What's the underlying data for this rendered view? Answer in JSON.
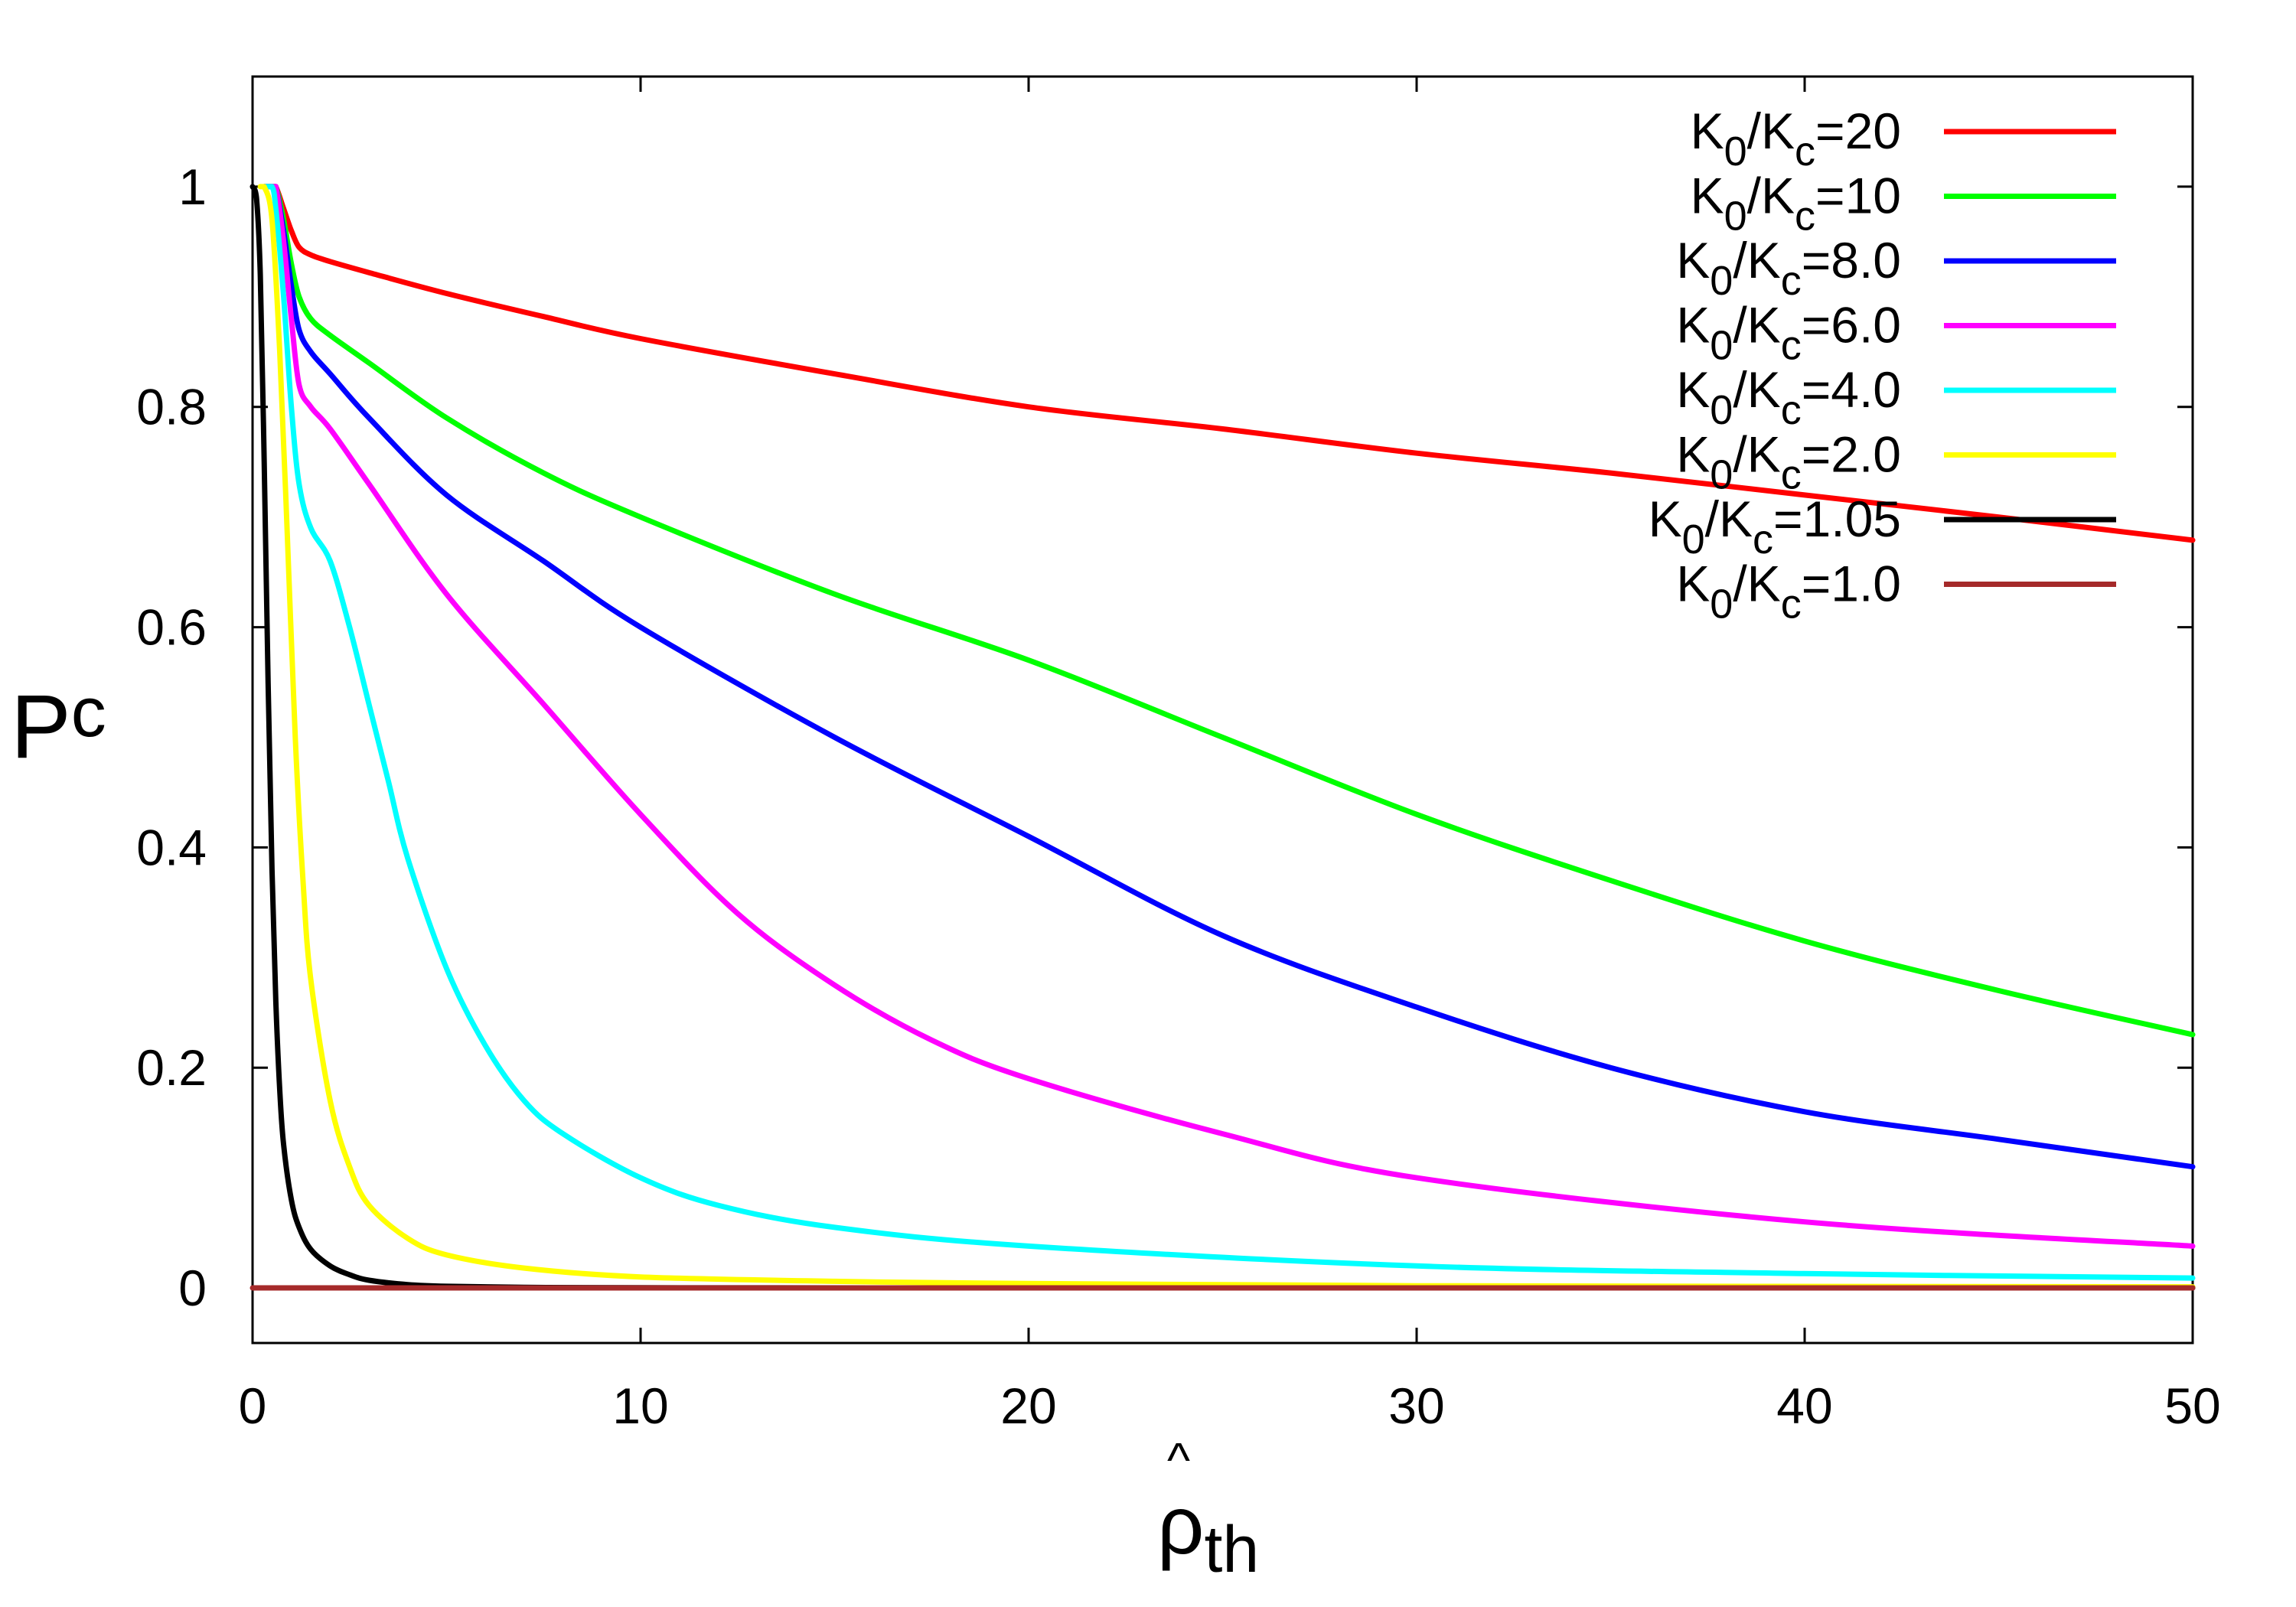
{
  "chart_data": {
    "type": "line",
    "title": "",
    "xlabel": {
      "main": "ρ",
      "hat": "^",
      "sub": "th"
    },
    "ylabel": {
      "main": "P",
      "sub": "c"
    },
    "xlim": [
      0,
      50
    ],
    "ylim": [
      -0.05,
      1.1
    ],
    "xticks": [
      0,
      10,
      20,
      30,
      40,
      50
    ],
    "yticks": [
      0,
      0.2,
      0.4,
      0.6,
      0.8,
      1
    ],
    "xtick_labels": [
      "0",
      "10",
      "20",
      "30",
      "40",
      "50"
    ],
    "ytick_labels": [
      "0",
      "0.2",
      "0.4",
      "0.6",
      "0.8",
      "1"
    ],
    "grid": false,
    "legend_position": "top-right",
    "series": [
      {
        "name": "K0/Kc=20",
        "label": {
          "k0": "K",
          "s0": "0",
          "slash": "/K",
          "sc": "c",
          "value": "=20"
        },
        "color": "#ff0000",
        "x": [
          0.3,
          0.5,
          0.6,
          0.8,
          1,
          1.2,
          1.5,
          2,
          3,
          5,
          7.5,
          10,
          15,
          20,
          25,
          30,
          35,
          40,
          45,
          50
        ],
        "y": [
          1,
          1,
          1,
          0.98,
          0.96,
          0.945,
          0.938,
          0.932,
          0.922,
          0.903,
          0.882,
          0.862,
          0.83,
          0.8,
          0.78,
          0.758,
          0.74,
          0.72,
          0.7,
          0.679
        ]
      },
      {
        "name": "K0/Kc=10",
        "label": {
          "k0": "K",
          "s0": "0",
          "slash": "/K",
          "sc": "c",
          "value": "=10"
        },
        "color": "#00ff00",
        "x": [
          0.3,
          0.5,
          0.6,
          0.8,
          1,
          1.2,
          1.5,
          2,
          3,
          5,
          7.5,
          10,
          15,
          20,
          25,
          30,
          35,
          40,
          45,
          50
        ],
        "y": [
          1,
          1,
          1,
          0.97,
          0.93,
          0.9,
          0.88,
          0.865,
          0.84,
          0.79,
          0.74,
          0.7,
          0.63,
          0.57,
          0.5,
          0.43,
          0.37,
          0.315,
          0.27,
          0.23
        ]
      },
      {
        "name": "K0/Kc=8.0",
        "label": {
          "k0": "K",
          "s0": "0",
          "slash": "/K",
          "sc": "c",
          "value": "=8.0"
        },
        "color": "#0000ff",
        "x": [
          0.3,
          0.5,
          0.6,
          0.8,
          1,
          1.2,
          1.5,
          2,
          3,
          5,
          7.5,
          10,
          15,
          20,
          25,
          30,
          35,
          40,
          45,
          50
        ],
        "y": [
          1,
          1,
          1,
          0.96,
          0.91,
          0.87,
          0.85,
          0.83,
          0.79,
          0.72,
          0.66,
          0.6,
          0.5,
          0.41,
          0.32,
          0.255,
          0.2,
          0.16,
          0.135,
          0.11
        ]
      },
      {
        "name": "K0/Kc=6.0",
        "label": {
          "k0": "K",
          "s0": "0",
          "slash": "/K",
          "sc": "c",
          "value": "=6.0"
        },
        "color": "#ff00ff",
        "x": [
          0.3,
          0.5,
          0.6,
          0.8,
          1,
          1.2,
          1.5,
          2,
          3,
          5,
          7.5,
          10,
          12.5,
          15,
          17.5,
          20,
          25,
          30,
          40,
          50
        ],
        "y": [
          1,
          1,
          1,
          0.95,
          0.88,
          0.82,
          0.8,
          0.78,
          0.73,
          0.63,
          0.53,
          0.43,
          0.34,
          0.275,
          0.225,
          0.19,
          0.14,
          0.1,
          0.06,
          0.038
        ]
      },
      {
        "name": "K0/Kc=4.0",
        "label": {
          "k0": "K",
          "s0": "0",
          "slash": "/K",
          "sc": "c",
          "value": "=4.0"
        },
        "color": "#00ffff",
        "x": [
          0.3,
          0.5,
          0.6,
          0.8,
          1,
          1.2,
          1.5,
          2,
          2.5,
          3,
          3.5,
          4,
          5,
          6,
          7,
          8,
          10,
          12,
          15,
          20,
          30,
          40,
          50
        ],
        "y": [
          1,
          1,
          0.98,
          0.9,
          0.8,
          0.73,
          0.69,
          0.66,
          0.6,
          0.53,
          0.46,
          0.39,
          0.29,
          0.22,
          0.17,
          0.14,
          0.1,
          0.075,
          0.055,
          0.038,
          0.02,
          0.013,
          0.009
        ]
      },
      {
        "name": "K0/Kc=2.0",
        "label": {
          "k0": "K",
          "s0": "0",
          "slash": "/K",
          "sc": "c",
          "value": "=2.0"
        },
        "color": "#ffff00",
        "x": [
          0.2,
          0.3,
          0.5,
          0.7,
          0.9,
          1.1,
          1.3,
          1.5,
          2,
          2.5,
          3,
          4,
          5,
          7,
          10,
          15,
          20,
          30,
          50
        ],
        "y": [
          1,
          1,
          0.97,
          0.85,
          0.68,
          0.5,
          0.37,
          0.28,
          0.17,
          0.11,
          0.075,
          0.045,
          0.03,
          0.018,
          0.01,
          0.006,
          0.004,
          0.002,
          0.001
        ]
      },
      {
        "name": "K0/Kc=1.05",
        "label": {
          "k0": "K",
          "s0": "0",
          "slash": "/K",
          "sc": "c",
          "value": "=1.05"
        },
        "color": "#000000",
        "x": [
          0,
          0.1,
          0.2,
          0.3,
          0.4,
          0.5,
          0.6,
          0.7,
          0.8,
          1,
          1.2,
          1.5,
          2,
          2.5,
          3,
          4,
          5,
          7,
          10,
          20,
          30,
          50
        ],
        "y": [
          1,
          0.99,
          0.92,
          0.75,
          0.55,
          0.38,
          0.26,
          0.18,
          0.13,
          0.08,
          0.055,
          0.035,
          0.02,
          0.012,
          0.007,
          0.003,
          0.0015,
          0.0005,
          0.0002,
          0,
          0,
          0
        ]
      },
      {
        "name": "K0/Kc=1.0",
        "label": {
          "k0": "K",
          "s0": "0",
          "slash": "/K",
          "sc": "c",
          "value": "=1.0"
        },
        "color": "#a52a2a",
        "x": [
          0,
          50
        ],
        "y": [
          0,
          0
        ]
      }
    ]
  }
}
